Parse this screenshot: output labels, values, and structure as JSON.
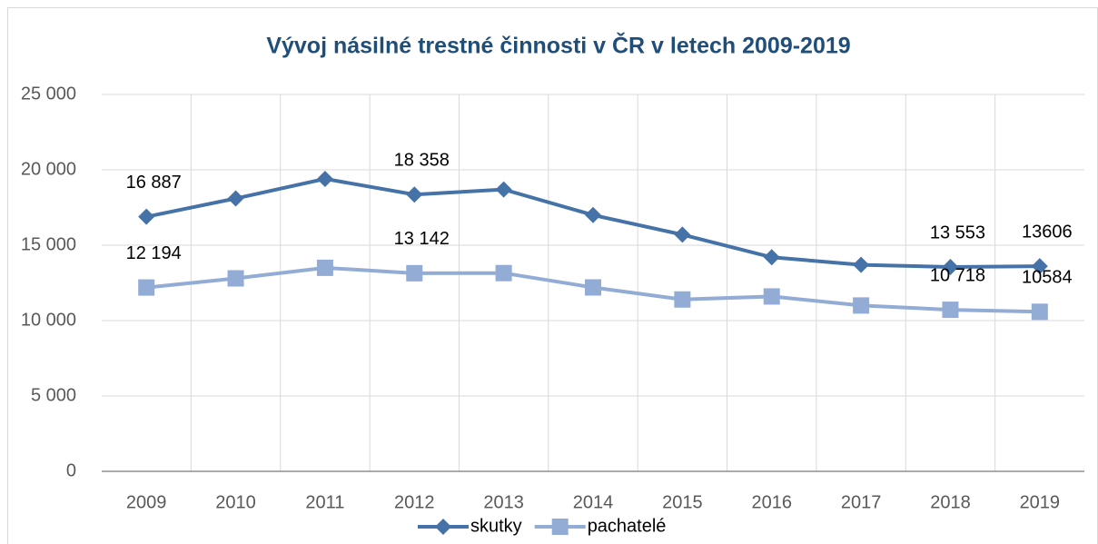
{
  "chart_data": {
    "type": "line",
    "title": "Vývoj násilné trestné činnosti v ČR v letech 2009-2019",
    "categories": [
      "2009",
      "2010",
      "2011",
      "2012",
      "2013",
      "2014",
      "2015",
      "2016",
      "2017",
      "2018",
      "2019"
    ],
    "series": [
      {
        "name": "skutky",
        "color": "#4572a7",
        "marker": "diamond",
        "values": [
          16887,
          18100,
          19400,
          18358,
          18700,
          17000,
          15700,
          14200,
          13700,
          13553,
          13606
        ],
        "value_labels": [
          "16 887",
          null,
          null,
          "18 358",
          null,
          null,
          null,
          null,
          null,
          "13 553",
          "13606"
        ]
      },
      {
        "name": "pachatelé",
        "color": "#93acd6",
        "marker": "square",
        "values": [
          12194,
          12800,
          13500,
          13142,
          13150,
          12200,
          11400,
          11600,
          11000,
          10718,
          10584
        ],
        "value_labels": [
          "12 194",
          null,
          null,
          "13 142",
          null,
          null,
          null,
          null,
          null,
          "10 718",
          "10584"
        ]
      }
    ],
    "ylim": [
      0,
      25000
    ],
    "yticks": [
      0,
      {
        "value": 5000,
        "label": "5 000"
      },
      {
        "value": 10000,
        "label": "10 000"
      },
      {
        "value": 15000,
        "label": "15 000"
      },
      {
        "value": 20000,
        "label": "20 000"
      },
      {
        "value": 25000,
        "label": "25 000"
      }
    ],
    "grid": true,
    "legend": "bottom"
  }
}
